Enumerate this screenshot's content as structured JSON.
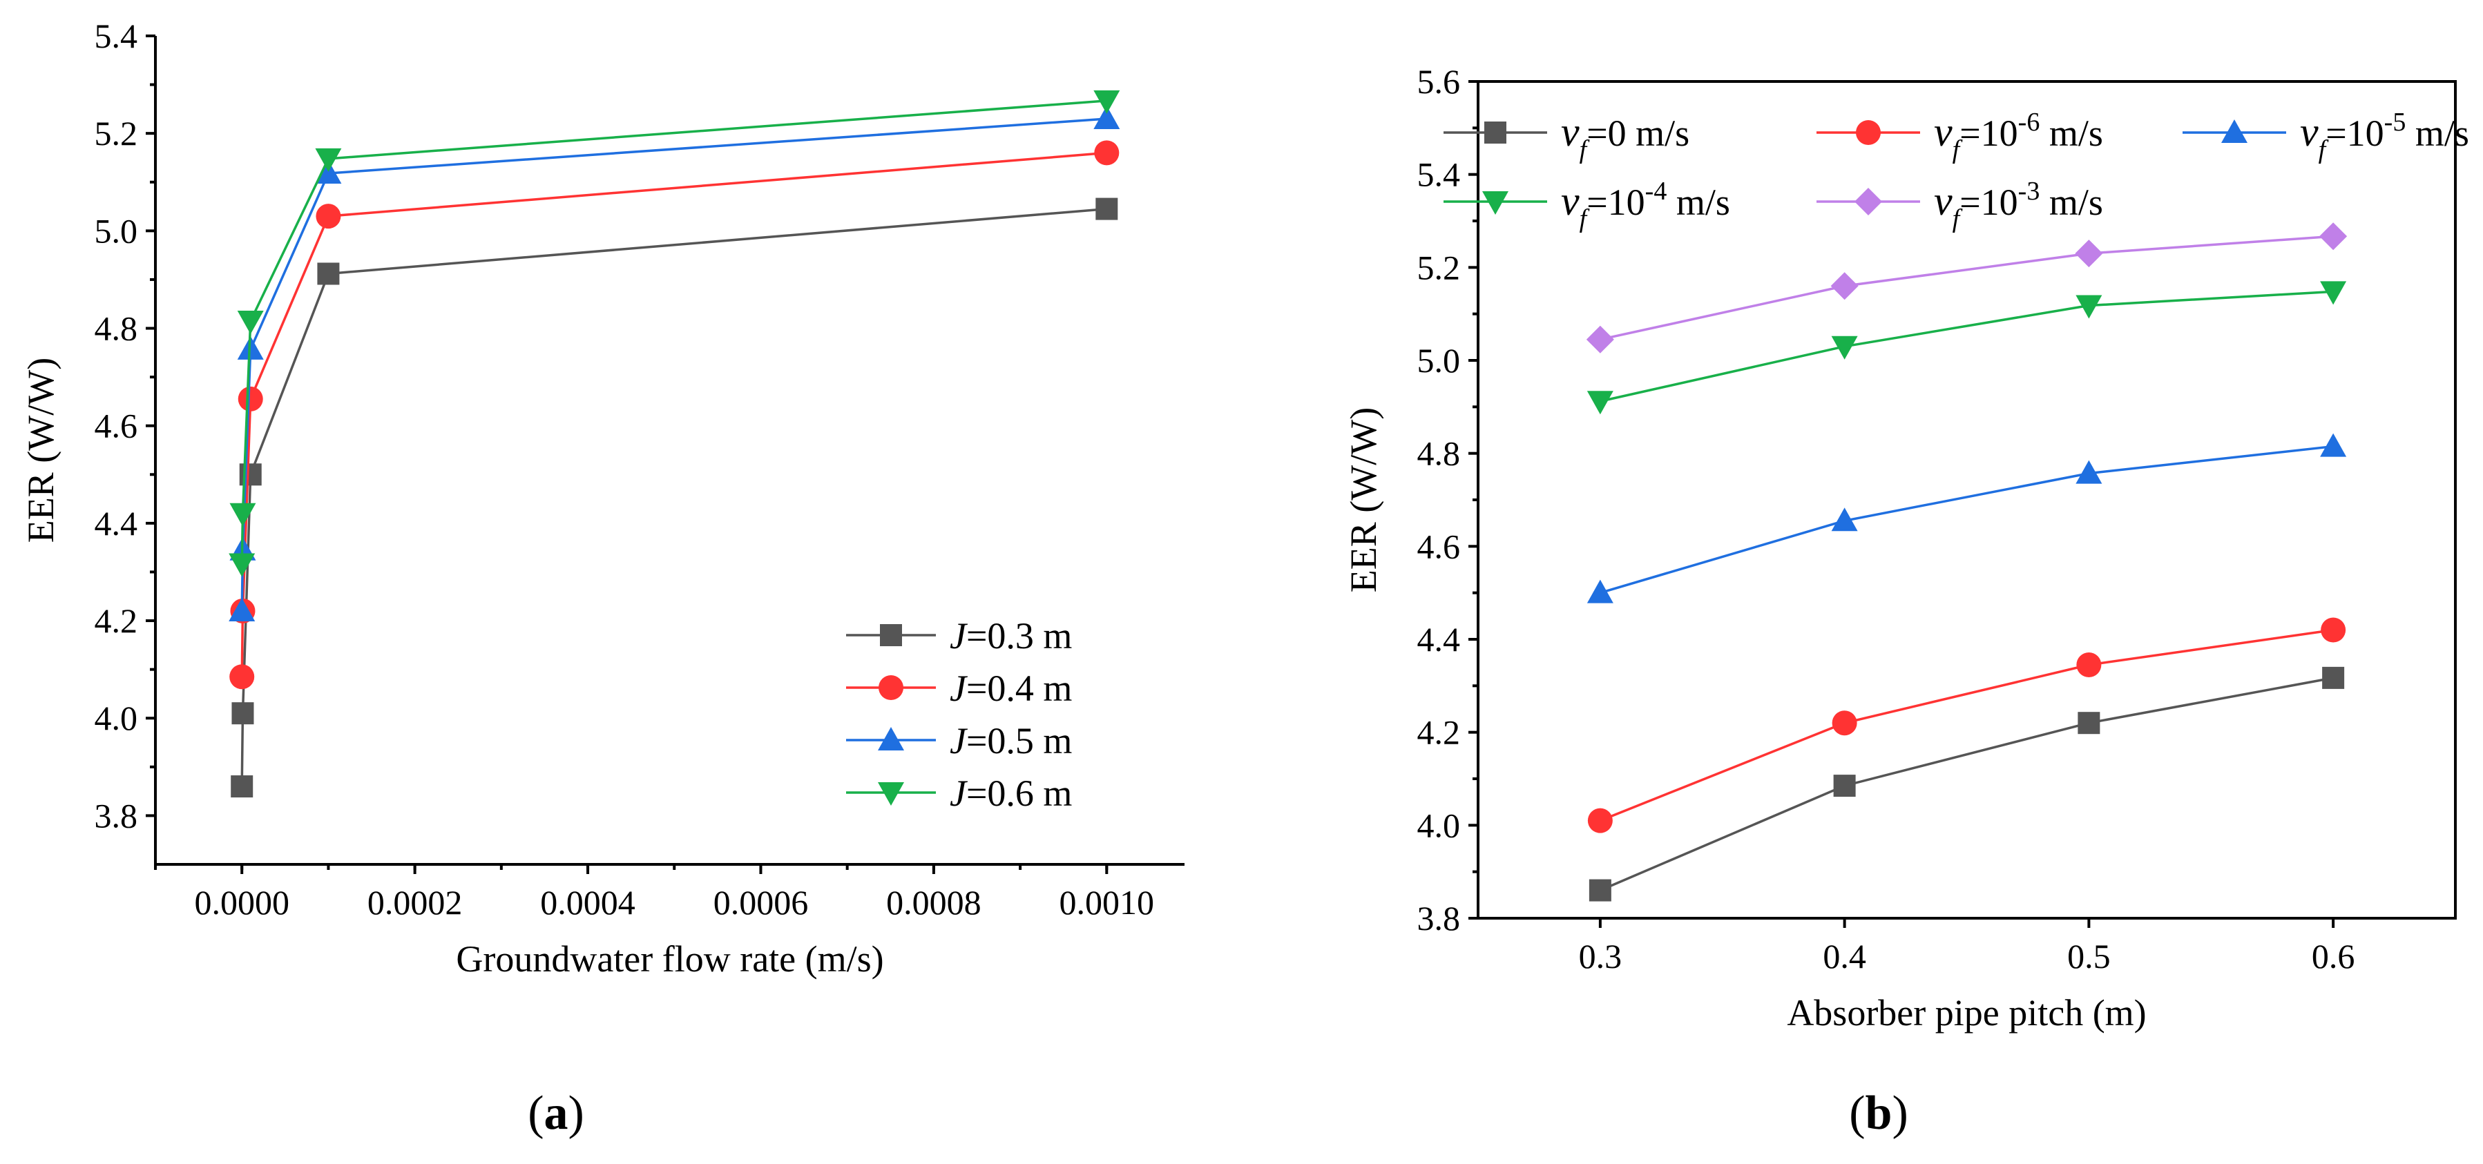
{
  "chart_data": [
    {
      "type": "line",
      "panel_label": "a",
      "xlabel": "Groundwater flow rate (m/s)",
      "ylabel": "EER (W/W)",
      "xlim": [
        -0.0001,
        0.00109
      ],
      "ylim": [
        3.7,
        5.4
      ],
      "xticks": [
        0.0,
        0.0002,
        0.0004,
        0.0006,
        0.0008,
        0.001
      ],
      "xtick_labels": [
        "0.0000",
        "0.0002",
        "0.0004",
        "0.0006",
        "0.0008",
        "0.0010"
      ],
      "yticks": [
        3.8,
        4.0,
        4.2,
        4.4,
        4.6,
        4.8,
        5.0,
        5.2,
        5.4
      ],
      "ytick_labels": [
        "3.8",
        "4.0",
        "4.2",
        "4.4",
        "4.6",
        "4.8",
        "5.0",
        "5.2",
        "5.4"
      ],
      "legend_position": "bottom-right",
      "x": [
        0,
        1e-06,
        1e-05,
        0.0001,
        0.001
      ],
      "series": [
        {
          "name": "J=0.3 m",
          "label_italic": "J",
          "label_rest": "=0.3 m",
          "color": "#555555",
          "marker": "square",
          "values": [
            3.86,
            4.01,
            4.5,
            4.912,
            5.045
          ]
        },
        {
          "name": "J=0.4 m",
          "label_italic": "J",
          "label_rest": "=0.4 m",
          "color": "#ff3333",
          "marker": "circle",
          "values": [
            4.085,
            4.22,
            4.655,
            5.03,
            5.16
          ]
        },
        {
          "name": "J=0.5 m",
          "label_italic": "J",
          "label_rest": "=0.5 m",
          "color": "#1f6fe0",
          "marker": "triangle-up",
          "values": [
            4.22,
            4.345,
            4.757,
            5.118,
            5.23
          ]
        },
        {
          "name": "J=0.6 m",
          "label_italic": "J",
          "label_rest": "=0.6 m",
          "color": "#18b04a",
          "marker": "triangle-down",
          "values": [
            4.317,
            4.42,
            4.815,
            5.148,
            5.267
          ]
        }
      ]
    },
    {
      "type": "line",
      "panel_label": "b",
      "xlabel": "Absorber pipe pitch (m)",
      "ylabel": "EER (W/W)",
      "xlim": [
        0.25,
        0.65
      ],
      "ylim": [
        3.8,
        5.6
      ],
      "categories": [
        "0.3",
        "0.4",
        "0.5",
        "0.6"
      ],
      "x": [
        0.3,
        0.4,
        0.5,
        0.6
      ],
      "xticks": [
        0.3,
        0.4,
        0.5,
        0.6
      ],
      "xtick_labels": [
        "0.3",
        "0.4",
        "0.5",
        "0.6"
      ],
      "yticks": [
        3.8,
        4.0,
        4.2,
        4.4,
        4.6,
        4.8,
        5.0,
        5.2,
        5.4,
        5.6
      ],
      "ytick_labels": [
        "3.8",
        "4.0",
        "4.2",
        "4.4",
        "4.6",
        "4.8",
        "5.0",
        "5.2",
        "5.4",
        "5.6"
      ],
      "legend_position": "top",
      "series": [
        {
          "name": "vf=0 m/s",
          "sym": "v",
          "sub": "f",
          "eq": "=0",
          "sup": "",
          "unit": " m/s",
          "color": "#555555",
          "marker": "square",
          "values": [
            3.86,
            4.085,
            4.22,
            4.317
          ]
        },
        {
          "name": "vf=10-6 m/s",
          "sym": "v",
          "sub": "f",
          "eq": "=10",
          "sup": "-6",
          "unit": " m/s",
          "color": "#ff3333",
          "marker": "circle",
          "values": [
            4.01,
            4.22,
            4.345,
            4.42
          ]
        },
        {
          "name": "vf=10-5 m/s",
          "sym": "v",
          "sub": "f",
          "eq": "=10",
          "sup": "-5",
          "unit": " m/s",
          "color": "#1f6fe0",
          "marker": "triangle-up",
          "values": [
            4.5,
            4.655,
            4.757,
            4.815
          ]
        },
        {
          "name": "vf=10-4 m/s",
          "sym": "v",
          "sub": "f",
          "eq": "=10",
          "sup": "-4",
          "unit": " m/s",
          "color": "#18b04a",
          "marker": "triangle-down",
          "values": [
            4.912,
            5.03,
            5.118,
            5.148
          ]
        },
        {
          "name": "vf=10-3 m/s",
          "sym": "v",
          "sub": "f",
          "eq": "=10",
          "sup": "-3",
          "unit": " m/s",
          "color": "#c080e8",
          "marker": "diamond",
          "values": [
            5.045,
            5.16,
            5.23,
            5.267
          ]
        }
      ]
    }
  ]
}
